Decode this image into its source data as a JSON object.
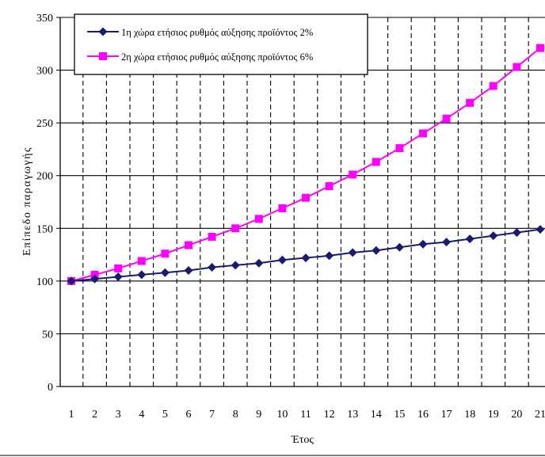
{
  "chart_data": {
    "type": "line",
    "title": "",
    "xlabel": "Έτος",
    "ylabel": "Επίπεδο παραγωγής",
    "categories": [
      "1",
      "2",
      "3",
      "4",
      "5",
      "6",
      "7",
      "8",
      "9",
      "10",
      "11",
      "12",
      "13",
      "14",
      "15",
      "16",
      "17",
      "18",
      "19",
      "20",
      "21"
    ],
    "ylim": [
      0,
      350
    ],
    "yticks": [
      "0",
      "50",
      "100",
      "150",
      "200",
      "250",
      "300",
      "350"
    ],
    "grid": "horizontal solid, vertical dashed",
    "legend_position": "top-left",
    "series": [
      {
        "name": "1η χώρα ετήσιος ρυθμός αύξησης προϊόντος 2%",
        "color": "#1a1a6e",
        "marker": "diamond",
        "values": [
          100,
          102,
          104,
          106,
          108,
          110,
          113,
          115,
          117,
          120,
          122,
          124,
          127,
          129,
          132,
          135,
          137,
          140,
          143,
          146,
          149
        ]
      },
      {
        "name": "2η χώρα ετήσιος ρυθμός αύξησης προϊόντος 6%",
        "color": "#ff00ff",
        "marker": "square",
        "values": [
          100,
          106,
          112,
          119,
          126,
          134,
          142,
          150,
          159,
          169,
          179,
          190,
          201,
          213,
          226,
          240,
          254,
          269,
          285,
          303,
          321
        ]
      }
    ]
  }
}
